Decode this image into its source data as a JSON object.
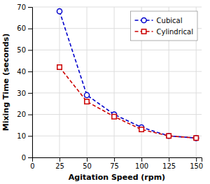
{
  "chart_data": {
    "type": "line",
    "x_label": "Agitation Speed (rpm)",
    "y_label": "Mixing Time (seconds)",
    "x": [
      25,
      50,
      75,
      100,
      125,
      150
    ],
    "series": [
      {
        "name": "Cubical",
        "color": "#0000cc",
        "values": [
          68,
          29,
          20,
          14,
          10,
          9
        ],
        "marker": "circle",
        "line_style": "dashed"
      },
      {
        "name": "Cylindrical",
        "color": "#cc0000",
        "values": [
          42,
          26,
          19,
          13,
          10,
          9
        ],
        "marker": "square",
        "line_style": "dashed"
      }
    ],
    "xlim": [
      0,
      155
    ],
    "ylim": [
      0,
      70
    ],
    "xticks": [
      0,
      25,
      50,
      75,
      100,
      125,
      150
    ],
    "yticks": [
      0,
      10,
      20,
      30,
      40,
      50,
      60,
      70
    ],
    "grid": true,
    "legend": "upper right"
  }
}
